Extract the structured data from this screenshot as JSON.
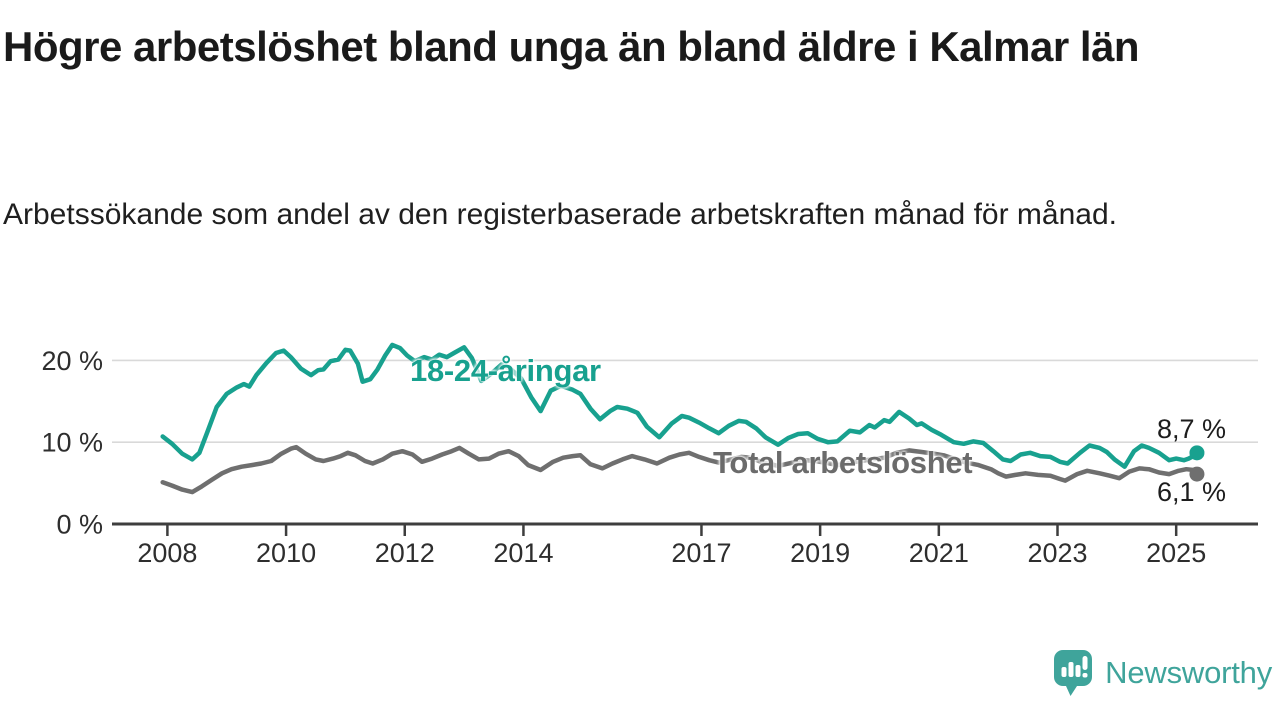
{
  "header": {
    "title": "Högre arbetslöshet bland unga än bland äldre i Kalmar län",
    "subtitle": "Arbetssökande som andel av den registerbaserade arbetskraften månad för månad."
  },
  "chart_data": {
    "type": "line",
    "unit": "%",
    "grid_on": true,
    "legend_position": "inline-labels",
    "grid_color": "#d9d9d9",
    "axis_color": "#3e3e3e",
    "tick_label_color": "#2e2e2e",
    "ylim": [
      0,
      24
    ],
    "xlim_years": [
      2007.8,
      2026.4
    ],
    "y_ticks": [
      {
        "value": 0,
        "label": "0 %"
      },
      {
        "value": 10,
        "label": "10 %"
      },
      {
        "value": 20,
        "label": "20 %"
      }
    ],
    "x_ticks": [
      {
        "year": 2008,
        "label": "2008"
      },
      {
        "year": 2010,
        "label": "2010"
      },
      {
        "year": 2012,
        "label": "2012"
      },
      {
        "year": 2014,
        "label": "2014"
      },
      {
        "year": 2017,
        "label": "2017"
      },
      {
        "year": 2019,
        "label": "2019"
      },
      {
        "year": 2021,
        "label": "2021"
      },
      {
        "year": 2023,
        "label": "2023"
      },
      {
        "year": 2025,
        "label": "2025"
      }
    ],
    "series": [
      {
        "name": "18-24-åringar",
        "color": "#18a18f",
        "end_label": "8,7 %",
        "end_value": 8.7,
        "points": [
          [
            2007.92,
            10.7
          ],
          [
            2008.08,
            9.8
          ],
          [
            2008.25,
            8.6
          ],
          [
            2008.42,
            7.9
          ],
          [
            2008.54,
            8.7
          ],
          [
            2008.67,
            11.2
          ],
          [
            2008.83,
            14.3
          ],
          [
            2009.0,
            15.9
          ],
          [
            2009.17,
            16.7
          ],
          [
            2009.29,
            17.1
          ],
          [
            2009.38,
            16.8
          ],
          [
            2009.5,
            18.2
          ],
          [
            2009.67,
            19.7
          ],
          [
            2009.83,
            20.9
          ],
          [
            2009.96,
            21.2
          ],
          [
            2010.08,
            20.4
          ],
          [
            2010.25,
            19.0
          ],
          [
            2010.42,
            18.2
          ],
          [
            2010.54,
            18.8
          ],
          [
            2010.63,
            18.9
          ],
          [
            2010.75,
            19.9
          ],
          [
            2010.88,
            20.1
          ],
          [
            2011.0,
            21.3
          ],
          [
            2011.08,
            21.2
          ],
          [
            2011.21,
            19.6
          ],
          [
            2011.29,
            17.4
          ],
          [
            2011.42,
            17.7
          ],
          [
            2011.54,
            18.9
          ],
          [
            2011.67,
            20.6
          ],
          [
            2011.79,
            21.9
          ],
          [
            2011.92,
            21.5
          ],
          [
            2012.04,
            20.6
          ],
          [
            2012.17,
            19.9
          ],
          [
            2012.33,
            20.4
          ],
          [
            2012.46,
            20.1
          ],
          [
            2012.58,
            20.7
          ],
          [
            2012.71,
            20.4
          ],
          [
            2012.83,
            20.9
          ],
          [
            2013.0,
            21.6
          ],
          [
            2013.13,
            20.3
          ],
          [
            2013.29,
            17.5
          ],
          [
            2013.46,
            18.4
          ],
          [
            2013.63,
            19.5
          ],
          [
            2013.79,
            18.9
          ],
          [
            2013.96,
            17.8
          ],
          [
            2014.13,
            15.5
          ],
          [
            2014.29,
            13.8
          ],
          [
            2014.46,
            16.3
          ],
          [
            2014.63,
            16.9
          ],
          [
            2014.83,
            16.4
          ],
          [
            2014.96,
            15.9
          ],
          [
            2015.13,
            14.1
          ],
          [
            2015.29,
            12.8
          ],
          [
            2015.46,
            13.8
          ],
          [
            2015.58,
            14.3
          ],
          [
            2015.75,
            14.1
          ],
          [
            2015.92,
            13.6
          ],
          [
            2016.08,
            11.9
          ],
          [
            2016.29,
            10.6
          ],
          [
            2016.5,
            12.3
          ],
          [
            2016.67,
            13.2
          ],
          [
            2016.79,
            13.0
          ],
          [
            2016.96,
            12.4
          ],
          [
            2017.13,
            11.7
          ],
          [
            2017.29,
            11.1
          ],
          [
            2017.46,
            12.0
          ],
          [
            2017.63,
            12.6
          ],
          [
            2017.75,
            12.5
          ],
          [
            2017.92,
            11.7
          ],
          [
            2018.08,
            10.6
          ],
          [
            2018.29,
            9.7
          ],
          [
            2018.46,
            10.5
          ],
          [
            2018.63,
            11.0
          ],
          [
            2018.79,
            11.1
          ],
          [
            2018.96,
            10.4
          ],
          [
            2019.13,
            10.0
          ],
          [
            2019.29,
            10.1
          ],
          [
            2019.5,
            11.4
          ],
          [
            2019.67,
            11.2
          ],
          [
            2019.83,
            12.1
          ],
          [
            2019.92,
            11.8
          ],
          [
            2020.08,
            12.7
          ],
          [
            2020.17,
            12.5
          ],
          [
            2020.33,
            13.7
          ],
          [
            2020.5,
            12.9
          ],
          [
            2020.63,
            12.1
          ],
          [
            2020.71,
            12.3
          ],
          [
            2020.88,
            11.5
          ],
          [
            2021.04,
            10.9
          ],
          [
            2021.25,
            10.0
          ],
          [
            2021.42,
            9.8
          ],
          [
            2021.58,
            10.1
          ],
          [
            2021.75,
            9.9
          ],
          [
            2021.92,
            8.9
          ],
          [
            2022.08,
            7.9
          ],
          [
            2022.21,
            7.7
          ],
          [
            2022.38,
            8.5
          ],
          [
            2022.54,
            8.7
          ],
          [
            2022.71,
            8.3
          ],
          [
            2022.88,
            8.2
          ],
          [
            2023.04,
            7.6
          ],
          [
            2023.17,
            7.4
          ],
          [
            2023.38,
            8.7
          ],
          [
            2023.54,
            9.6
          ],
          [
            2023.71,
            9.3
          ],
          [
            2023.83,
            8.8
          ],
          [
            2023.96,
            7.9
          ],
          [
            2024.13,
            7.0
          ],
          [
            2024.29,
            8.9
          ],
          [
            2024.42,
            9.6
          ],
          [
            2024.54,
            9.3
          ],
          [
            2024.71,
            8.7
          ],
          [
            2024.88,
            7.8
          ],
          [
            2025.0,
            8.0
          ],
          [
            2025.13,
            7.8
          ],
          [
            2025.21,
            8.0
          ],
          [
            2025.29,
            8.3
          ],
          [
            2025.35,
            8.7
          ]
        ]
      },
      {
        "name": "Total arbetslöshet",
        "color": "#6f6f6f",
        "end_label": "6,1 %",
        "end_value": 6.1,
        "points": [
          [
            2007.92,
            5.1
          ],
          [
            2008.08,
            4.7
          ],
          [
            2008.25,
            4.2
          ],
          [
            2008.42,
            3.9
          ],
          [
            2008.58,
            4.6
          ],
          [
            2008.75,
            5.4
          ],
          [
            2008.92,
            6.2
          ],
          [
            2009.08,
            6.7
          ],
          [
            2009.25,
            7.0
          ],
          [
            2009.42,
            7.2
          ],
          [
            2009.58,
            7.4
          ],
          [
            2009.75,
            7.7
          ],
          [
            2009.92,
            8.6
          ],
          [
            2010.08,
            9.2
          ],
          [
            2010.17,
            9.4
          ],
          [
            2010.33,
            8.6
          ],
          [
            2010.5,
            7.9
          ],
          [
            2010.63,
            7.7
          ],
          [
            2010.79,
            8.0
          ],
          [
            2010.92,
            8.3
          ],
          [
            2011.04,
            8.7
          ],
          [
            2011.17,
            8.4
          ],
          [
            2011.33,
            7.7
          ],
          [
            2011.46,
            7.4
          ],
          [
            2011.63,
            7.9
          ],
          [
            2011.79,
            8.6
          ],
          [
            2011.96,
            8.9
          ],
          [
            2012.13,
            8.5
          ],
          [
            2012.29,
            7.6
          ],
          [
            2012.46,
            8.0
          ],
          [
            2012.63,
            8.5
          ],
          [
            2012.79,
            8.9
          ],
          [
            2012.92,
            9.3
          ],
          [
            2013.08,
            8.6
          ],
          [
            2013.25,
            7.9
          ],
          [
            2013.42,
            8.0
          ],
          [
            2013.58,
            8.6
          ],
          [
            2013.75,
            8.9
          ],
          [
            2013.92,
            8.3
          ],
          [
            2014.08,
            7.2
          ],
          [
            2014.29,
            6.6
          ],
          [
            2014.5,
            7.6
          ],
          [
            2014.67,
            8.1
          ],
          [
            2014.83,
            8.3
          ],
          [
            2014.96,
            8.4
          ],
          [
            2015.13,
            7.3
          ],
          [
            2015.33,
            6.8
          ],
          [
            2015.5,
            7.4
          ],
          [
            2015.67,
            7.9
          ],
          [
            2015.83,
            8.3
          ],
          [
            2016.04,
            7.9
          ],
          [
            2016.25,
            7.4
          ],
          [
            2016.46,
            8.1
          ],
          [
            2016.63,
            8.5
          ],
          [
            2016.79,
            8.7
          ],
          [
            2016.96,
            8.2
          ],
          [
            2017.13,
            7.8
          ],
          [
            2017.29,
            7.5
          ],
          [
            2017.5,
            7.9
          ],
          [
            2017.67,
            8.2
          ],
          [
            2017.83,
            8.1
          ],
          [
            2018.0,
            7.6
          ],
          [
            2018.29,
            7.1
          ],
          [
            2018.54,
            7.5
          ],
          [
            2018.75,
            7.8
          ],
          [
            2018.92,
            7.7
          ],
          [
            2019.08,
            7.5
          ],
          [
            2019.29,
            7.2
          ],
          [
            2019.46,
            7.4
          ],
          [
            2019.67,
            7.7
          ],
          [
            2019.88,
            7.9
          ],
          [
            2020.08,
            8.1
          ],
          [
            2020.29,
            8.7
          ],
          [
            2020.5,
            9.0
          ],
          [
            2020.71,
            8.8
          ],
          [
            2020.92,
            8.6
          ],
          [
            2021.08,
            8.4
          ],
          [
            2021.29,
            7.9
          ],
          [
            2021.46,
            7.5
          ],
          [
            2021.67,
            7.2
          ],
          [
            2021.88,
            6.7
          ],
          [
            2022.0,
            6.2
          ],
          [
            2022.13,
            5.8
          ],
          [
            2022.29,
            6.0
          ],
          [
            2022.46,
            6.2
          ],
          [
            2022.67,
            6.0
          ],
          [
            2022.88,
            5.9
          ],
          [
            2023.04,
            5.5
          ],
          [
            2023.13,
            5.3
          ],
          [
            2023.33,
            6.1
          ],
          [
            2023.5,
            6.5
          ],
          [
            2023.71,
            6.2
          ],
          [
            2023.88,
            5.9
          ],
          [
            2024.04,
            5.6
          ],
          [
            2024.21,
            6.4
          ],
          [
            2024.38,
            6.8
          ],
          [
            2024.54,
            6.7
          ],
          [
            2024.71,
            6.3
          ],
          [
            2024.88,
            6.1
          ],
          [
            2025.04,
            6.5
          ],
          [
            2025.17,
            6.7
          ],
          [
            2025.29,
            6.6
          ],
          [
            2025.35,
            6.1
          ]
        ]
      }
    ]
  },
  "footer": {
    "brand": "Newsworthy",
    "logo_color": "#3fa49b"
  },
  "colors": {
    "accent_teal": "#18a18f",
    "line_gray": "#6f6f6f",
    "grid": "#d9d9d9",
    "axis": "#3e3e3e",
    "title_text": "#1a1a1a"
  }
}
